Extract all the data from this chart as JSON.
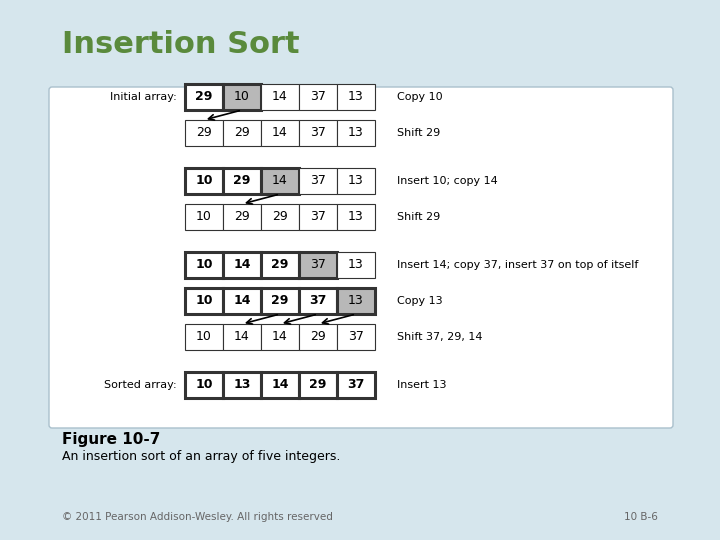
{
  "title": "Insertion Sort",
  "title_color": "#5a8a3c",
  "bg_color": "#d6e6ed",
  "figure_caption": "Figure 10-7",
  "description": "An insertion sort of an array of five integers.",
  "footer": "© 2011 Pearson Addison-Wesley. All rights reserved",
  "footer_right": "10 B-6",
  "rows": [
    {
      "label": "Initial array:",
      "values": [
        "29",
        "10",
        "14",
        "37",
        "13"
      ],
      "bold": [
        true,
        false,
        false,
        false,
        false
      ],
      "cell_colors": [
        "white",
        "gray",
        "white",
        "white",
        "white"
      ],
      "border_bold": [
        true,
        true,
        false,
        false,
        false
      ],
      "note": "Copy 10",
      "arrow_from": 1,
      "arrow_to_col": 0,
      "arrow_to_row": 1
    },
    {
      "label": "",
      "values": [
        "29",
        "29",
        "14",
        "37",
        "13"
      ],
      "bold": [
        false,
        false,
        false,
        false,
        false
      ],
      "cell_colors": [
        "white",
        "white",
        "white",
        "white",
        "white"
      ],
      "border_bold": [
        false,
        false,
        false,
        false,
        false
      ],
      "note": "Shift 29",
      "arrow_from": -1,
      "arrow_to_col": -1,
      "arrow_to_row": -1
    },
    {
      "label": "",
      "values": [
        "10",
        "29",
        "14",
        "37",
        "13"
      ],
      "bold": [
        true,
        true,
        false,
        false,
        false
      ],
      "cell_colors": [
        "white",
        "white",
        "gray",
        "white",
        "white"
      ],
      "border_bold": [
        true,
        true,
        true,
        false,
        false
      ],
      "note": "Insert 10; copy 14",
      "arrow_from": 2,
      "arrow_to_col": 1,
      "arrow_to_row": 3
    },
    {
      "label": "",
      "values": [
        "10",
        "29",
        "29",
        "37",
        "13"
      ],
      "bold": [
        false,
        false,
        false,
        false,
        false
      ],
      "cell_colors": [
        "white",
        "white",
        "white",
        "white",
        "white"
      ],
      "border_bold": [
        false,
        false,
        false,
        false,
        false
      ],
      "note": "Shift 29",
      "arrow_from": -1,
      "arrow_to_col": -1,
      "arrow_to_row": -1
    },
    {
      "label": "",
      "values": [
        "10",
        "14",
        "29",
        "37",
        "13"
      ],
      "bold": [
        true,
        true,
        true,
        false,
        false
      ],
      "cell_colors": [
        "white",
        "white",
        "white",
        "gray",
        "white"
      ],
      "border_bold": [
        true,
        true,
        true,
        true,
        false
      ],
      "note": "Insert 14; copy 37, insert 37 on top of itself",
      "arrow_from": -1,
      "arrow_to_col": -1,
      "arrow_to_row": -1
    },
    {
      "label": "",
      "values": [
        "10",
        "14",
        "29",
        "37",
        "13"
      ],
      "bold": [
        true,
        true,
        true,
        true,
        false
      ],
      "cell_colors": [
        "white",
        "white",
        "white",
        "white",
        "gray"
      ],
      "border_bold": [
        true,
        true,
        true,
        true,
        true
      ],
      "note": "Copy 13",
      "arrow_from": 99,
      "arrow_to_col": -1,
      "arrow_to_row": 6
    },
    {
      "label": "",
      "values": [
        "10",
        "14",
        "14",
        "29",
        "37"
      ],
      "bold": [
        false,
        false,
        false,
        false,
        false
      ],
      "cell_colors": [
        "white",
        "white",
        "white",
        "white",
        "white"
      ],
      "border_bold": [
        false,
        false,
        false,
        false,
        false
      ],
      "note": "Shift 37, 29, 14",
      "arrow_from": -1,
      "arrow_to_col": -1,
      "arrow_to_row": -1
    },
    {
      "label": "Sorted array:",
      "values": [
        "10",
        "13",
        "14",
        "29",
        "37"
      ],
      "bold": [
        true,
        true,
        true,
        true,
        true
      ],
      "cell_colors": [
        "white",
        "white",
        "white",
        "white",
        "white"
      ],
      "border_bold": [
        true,
        true,
        true,
        true,
        true
      ],
      "note": "Insert 13",
      "arrow_from": -1,
      "arrow_to_col": -1,
      "arrow_to_row": -1
    }
  ]
}
